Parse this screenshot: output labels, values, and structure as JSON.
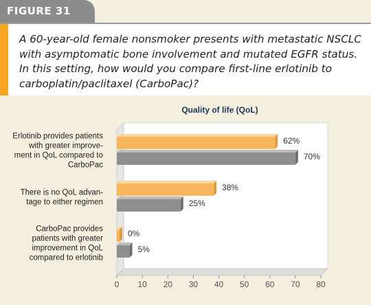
{
  "figure_label": "FIGURE 31",
  "question": "A 60-year-old female nonsmoker presents with metastatic NSCLC with asymptomatic bone involvement and mutated EGFR status. In this setting, how would you compare first-line erlotinib to carboplatin/paclitaxel (CarboPac)?",
  "colors": {
    "accent": "#f5a623",
    "bar_orange": "#f9b65c",
    "bar_gray": "#8f8f8f",
    "background": "#f4efdf"
  },
  "chart_data": {
    "type": "bar",
    "orientation": "horizontal",
    "title": "Quality of life (QoL)",
    "xlim": [
      0,
      80
    ],
    "xticks": [
      0,
      10,
      20,
      30,
      40,
      50,
      60,
      70,
      80
    ],
    "categories": [
      {
        "label_lines": [
          "Erlotinib provides patients",
          "with greater improve-",
          "ment in QoL compared to",
          "CarboPac"
        ],
        "values": [
          62,
          70
        ],
        "labels": [
          "62%",
          "70%"
        ]
      },
      {
        "label_lines": [
          "There is no QoL advan-",
          "tage to either regimen"
        ],
        "values": [
          38,
          25
        ],
        "labels": [
          "38%",
          "25%"
        ]
      },
      {
        "label_lines": [
          "CarboPac provides",
          "patients with greater",
          "improvement in QoL",
          "compared to erlotinib"
        ],
        "values": [
          0,
          5
        ],
        "labels": [
          "0%",
          "5%"
        ]
      }
    ]
  }
}
